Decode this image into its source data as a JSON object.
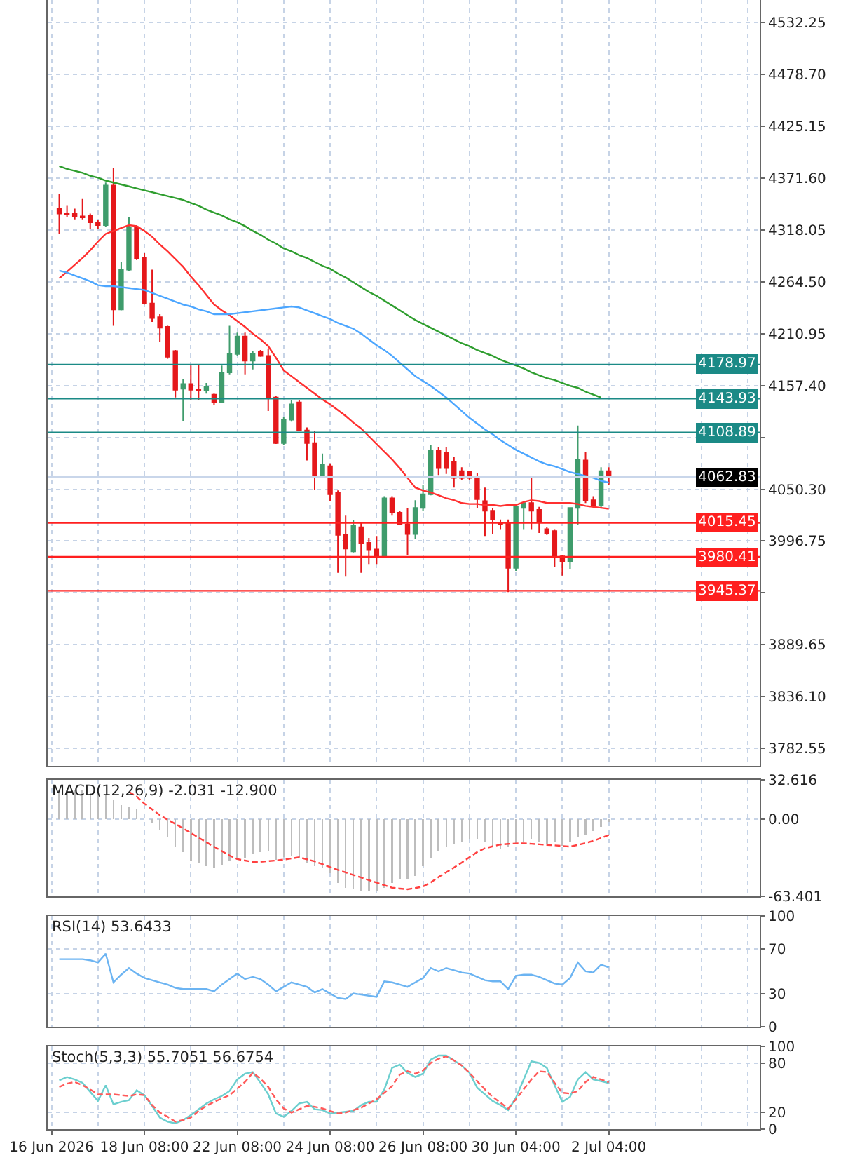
{
  "chart_data": [
    {
      "type": "candlestick",
      "categories": [
        null,
        null,
        null,
        null,
        null,
        null,
        null,
        null,
        null,
        null,
        null,
        null,
        null,
        null,
        null,
        null,
        null,
        null,
        null,
        null,
        null,
        null,
        null,
        null,
        null,
        null,
        null,
        null,
        null,
        null,
        null,
        null,
        null,
        null,
        null,
        null,
        null,
        null,
        null,
        null,
        null,
        null,
        null,
        null,
        null,
        null,
        null,
        null,
        null,
        null,
        null,
        null,
        null,
        null,
        null,
        null,
        null,
        null,
        null,
        null,
        null,
        null,
        null,
        null,
        null,
        null,
        null,
        null,
        null,
        null,
        null,
        null,
        null,
        null,
        null,
        null,
        null,
        null,
        null,
        null,
        null,
        null,
        null,
        null,
        null,
        null,
        null,
        null,
        null,
        null,
        null,
        null
      ],
      "ohlc": [
        null,
        [
          4340,
          4355,
          4314,
          4335
        ],
        [
          4335,
          4343,
          4331,
          4334
        ],
        [
          4335,
          4340,
          4329,
          4332
        ],
        [
          4332,
          4350,
          4329,
          4331
        ],
        [
          4333,
          4335,
          4319,
          4326
        ],
        [
          4326,
          4328,
          4319,
          4323
        ],
        [
          4323,
          4367,
          4321,
          4364
        ],
        [
          4364,
          4382,
          4219,
          4236
        ],
        [
          4236,
          4285,
          4235,
          4277
        ],
        [
          4277,
          4331,
          4276,
          4321
        ],
        [
          4321,
          4323,
          4287,
          4289
        ],
        [
          4289,
          4294,
          4241,
          4242
        ],
        [
          4242,
          4277,
          4223,
          4227
        ],
        [
          4228,
          4231,
          4202,
          4217
        ],
        [
          4218,
          4219,
          4185,
          4187
        ],
        [
          4193,
          4194,
          4145,
          4153
        ],
        [
          4154,
          4164,
          4121,
          4159
        ],
        [
          4159,
          4178,
          4142,
          4153
        ],
        [
          4153,
          4179,
          4142,
          4152
        ],
        [
          4152,
          4160,
          4149,
          4156
        ],
        [
          4148,
          4149,
          4137,
          4140
        ],
        [
          4140,
          4178,
          4139,
          4171
        ],
        [
          4171,
          4219,
          4169,
          4190
        ],
        [
          4190,
          4212,
          4188,
          4208
        ],
        [
          4208,
          4212,
          4169,
          4183
        ],
        [
          4183,
          4193,
          4174,
          4190
        ],
        [
          4192,
          4194,
          4187,
          4188
        ],
        [
          4188,
          4195,
          4131,
          4145
        ],
        [
          4145,
          4147,
          4097,
          4098
        ],
        [
          4098,
          4125,
          4096,
          4122
        ],
        [
          4122,
          4142,
          4120,
          4138
        ],
        [
          4140,
          4142,
          4110,
          4111
        ],
        [
          4111,
          4114,
          4080,
          4098
        ],
        [
          4098,
          4110,
          4050,
          4063
        ],
        [
          4063,
          4087,
          4062,
          4076
        ],
        [
          4074,
          4077,
          4038,
          4045
        ],
        [
          4047,
          4049,
          3964,
          4003
        ],
        [
          4003,
          4023,
          3960,
          3989
        ],
        [
          3986,
          4018,
          3985,
          4013
        ],
        [
          4011,
          4016,
          3964,
          3995
        ],
        [
          3995,
          4000,
          3973,
          3988
        ],
        [
          3988,
          4002,
          3973,
          3980
        ],
        [
          3980,
          4043,
          3980,
          4041
        ],
        [
          4041,
          4043,
          4023,
          4026
        ],
        [
          4026,
          4028,
          4013,
          4014
        ],
        [
          4014,
          4031,
          3982,
          4004
        ],
        [
          4004,
          4039,
          3999,
          4031
        ],
        [
          4031,
          4055,
          4028,
          4045
        ],
        [
          4045,
          4096,
          4044,
          4090
        ],
        [
          4090,
          4094,
          4065,
          4072
        ],
        [
          4088,
          4094,
          4066,
          4072
        ],
        [
          4079,
          4084,
          4052,
          4062
        ],
        [
          4069,
          4073,
          4060,
          4062
        ],
        [
          4068,
          4069,
          4060,
          4062
        ],
        [
          4062,
          4067,
          4031,
          4040
        ],
        [
          4038,
          4052,
          4002,
          4028
        ],
        [
          4028,
          4031,
          4004,
          4019
        ],
        [
          4016,
          4019,
          4009,
          4014
        ],
        [
          4016,
          4019,
          3944,
          3969
        ],
        [
          3969,
          4034,
          3966,
          4032
        ],
        [
          4031,
          4038,
          4009,
          4036
        ],
        [
          4036,
          4063,
          4009,
          4028
        ],
        [
          4029,
          4032,
          4005,
          4016
        ],
        [
          4009,
          4011,
          4003,
          4005
        ],
        [
          4007,
          4009,
          3970,
          3981
        ],
        [
          3981,
          3982,
          3961,
          3976
        ],
        [
          3976,
          4031,
          3968,
          4031
        ],
        [
          4031,
          4116,
          4013,
          4081
        ],
        [
          4080,
          4089,
          4036,
          4039
        ],
        [
          4039,
          4043,
          4032,
          4034
        ],
        [
          4034,
          4073,
          4031,
          4069
        ],
        [
          4069,
          4073,
          4055,
          4062.83
        ],
        null,
        null,
        null,
        null,
        null,
        null,
        null,
        null,
        null,
        null,
        null,
        null,
        null,
        null,
        null,
        null,
        null,
        null,
        null
      ],
      "colors": [
        null,
        "#e5181b",
        "#e5181b",
        "#e5181b",
        "#e5181b",
        "#e5181b",
        "#e5181b",
        "#3f9c6c",
        "#e5181b",
        "#3f9c6c",
        "#3f9c6c",
        "#e5181b",
        "#e5181b",
        "#e5181b",
        "#e5181b",
        "#e5181b",
        "#e5181b",
        "#3f9c6c",
        "#e5181b",
        "#e5181b",
        "#3f9c6c",
        "#e5181b",
        "#3f9c6c",
        "#3f9c6c",
        "#3f9c6c",
        "#e5181b",
        "#3f9c6c",
        "#e5181b",
        "#e5181b",
        "#e5181b",
        "#3f9c6c",
        "#3f9c6c",
        "#e5181b",
        "#e5181b",
        "#e5181b",
        "#3f9c6c",
        "#e5181b",
        "#e5181b",
        "#e5181b",
        "#3f9c6c",
        "#e5181b",
        "#e5181b",
        "#e5181b",
        "#3f9c6c",
        "#e5181b",
        "#e5181b",
        "#e5181b",
        "#3f9c6c",
        "#3f9c6c",
        "#3f9c6c",
        "#e5181b",
        "#e5181b",
        "#e5181b",
        "#e5181b",
        "#e5181b",
        "#e5181b",
        "#e5181b",
        "#e5181b",
        "#e5181b",
        "#e5181b",
        "#3f9c6c",
        "#3f9c6c",
        "#e5181b",
        "#e5181b",
        "#e5181b",
        "#e5181b",
        "#e5181b",
        "#3f9c6c",
        "#3f9c6c",
        "#e5181b",
        "#e5181b",
        "#3f9c6c",
        "#e5181b",
        null,
        null,
        null,
        null,
        null,
        null,
        null,
        null,
        null,
        null,
        null,
        null,
        null,
        null,
        null,
        null,
        null,
        null,
        null
      ],
      "series": [
        {
          "type": "line",
          "color": "#ff3030",
          "values": [
            null,
            4268,
            4275,
            4282,
            4289,
            4297,
            4306,
            4314,
            4317,
            4320,
            4323,
            4322,
            4317,
            4311,
            4303,
            4296,
            4288,
            4280,
            4270,
            4261,
            4251,
            4241,
            4235,
            4230,
            4224,
            4218,
            4211,
            4205,
            4198,
            4186,
            4173,
            4167,
            4161,
            4155,
            4149,
            4143,
            4138,
            4132,
            4126,
            4119,
            4113,
            4105,
            4097,
            4089,
            4081,
            4072,
            4062,
            4052,
            4049,
            4047,
            4044,
            4041,
            4039,
            4036,
            4035,
            4035,
            4034,
            4034,
            4033,
            4034,
            4034,
            4037,
            4039,
            4038,
            4036,
            4036,
            4036,
            4036,
            4035,
            4033,
            4032,
            4031,
            4030,
            null,
            null,
            null,
            null,
            null,
            null,
            null,
            null,
            null,
            null,
            null,
            null,
            null,
            null,
            null,
            null,
            null,
            null,
            null
          ]
        },
        {
          "type": "line",
          "color": "#4ca6ff",
          "values": [
            null,
            4276,
            4274,
            4271,
            4268,
            4265,
            4261,
            4260,
            4260,
            4259,
            4258,
            4257,
            4256,
            4253,
            4250,
            4247,
            4244,
            4241,
            4239,
            4236,
            4234,
            4231,
            4231,
            4231,
            4232,
            4233,
            4234,
            4235,
            4236,
            4237,
            4238,
            4239,
            4238,
            4235,
            4232,
            4229,
            4226,
            4222,
            4219,
            4216,
            4211,
            4205,
            4199,
            4194,
            4188,
            4181,
            4174,
            4167,
            4162,
            4157,
            4151,
            4145,
            4138,
            4131,
            4124,
            4118,
            4112,
            4107,
            4101,
            4096,
            4091,
            4087,
            4083,
            4079,
            4076,
            4074,
            4071,
            4068,
            4066,
            4064,
            4062,
            4059,
            4057,
            null,
            null,
            null,
            null,
            null,
            null,
            null,
            null,
            null,
            null,
            null,
            null,
            null,
            null,
            null,
            null,
            null,
            null,
            null
          ]
        },
        {
          "type": "line",
          "color": "#2f9e2f",
          "values": [
            null,
            4384,
            4381,
            4379,
            4377,
            4374,
            4372,
            4369,
            4367,
            4365,
            4363,
            4361,
            4359,
            4357,
            4355,
            4353,
            4351,
            4349,
            4346,
            4343,
            4339,
            4336,
            4333,
            4329,
            4326,
            4322,
            4317,
            4313,
            4308,
            4304,
            4299,
            4296,
            4292,
            4289,
            4285,
            4281,
            4278,
            4273,
            4269,
            4264,
            4259,
            4254,
            4250,
            4245,
            4240,
            4235,
            4230,
            4225,
            4221,
            4217,
            4213,
            4209,
            4205,
            4201,
            4198,
            4194,
            4191,
            4188,
            4184,
            4181,
            4178,
            4175,
            4171,
            4168,
            4165,
            4163,
            4160,
            4157,
            4155,
            4151,
            4148,
            4145,
            null,
            null,
            null,
            null,
            null,
            null,
            null,
            null,
            null,
            null,
            null,
            null,
            null,
            null,
            null,
            null,
            null,
            null,
            null,
            null
          ]
        }
      ],
      "ylim": [
        3764.6,
        4555.5
      ],
      "yticks": [
        4532.25,
        {
          "value": 4478.7,
          "label": "4478.70"
        },
        4425.15,
        {
          "value": 4371.6,
          "label": "4371.60"
        },
        4318.05,
        {
          "value": 4264.5,
          "label": "4264.50"
        },
        4210.95,
        {
          "value": 4157.4,
          "label": "4157.40"
        },
        {
          "value": 4103.85,
          "label": null
        },
        {
          "value": 4050.3,
          "label": "4050.30"
        },
        3996.75,
        {
          "value": 3943.2,
          "label": null
        },
        3889.65,
        {
          "value": 3836.1,
          "label": "3836.10"
        },
        3782.55
      ],
      "ref_lines": [
        {
          "axis": "y",
          "value": 4178.97,
          "label": "4178.97",
          "color": "#1b8a86"
        },
        {
          "axis": "y",
          "value": 4143.93,
          "label": "4143.93",
          "color": "#1b8a86"
        },
        {
          "axis": "y",
          "value": 4108.89,
          "label": "4108.89",
          "color": "#1b8a86"
        },
        {
          "axis": "y",
          "value": 4062.83,
          "label": "4062.83",
          "color": "#c9d6ea"
        },
        {
          "axis": "y",
          "value": 4015.45,
          "label": "4015.45",
          "color": "#ff1f1f"
        },
        {
          "axis": "y",
          "value": 3980.41,
          "label": "3980.41",
          "color": "#ff1f1f"
        },
        {
          "axis": "y",
          "value": 3945.37,
          "label": "3945.37",
          "color": "#ff1f1f"
        }
      ],
      "grid": true,
      "tick_labels": "y"
    },
    {
      "type": "bar",
      "title": "MACD(12,26,9) -2.031 -12.900",
      "categories": [
        null,
        null,
        null,
        null,
        null,
        null,
        null,
        null,
        null,
        null,
        null,
        null,
        null,
        null,
        null,
        null,
        null,
        null,
        null,
        null,
        null,
        null,
        null,
        null,
        null,
        null,
        null,
        null,
        null,
        null,
        null,
        null,
        null,
        null,
        null,
        null,
        null,
        null,
        null,
        null,
        null,
        null,
        null,
        null,
        null,
        null,
        null,
        null,
        null,
        null,
        null,
        null,
        null,
        null,
        null,
        null,
        null,
        null,
        null,
        null,
        null,
        null,
        null,
        null,
        null,
        null,
        null,
        null,
        null,
        null,
        null,
        null,
        null,
        null,
        null,
        null,
        null,
        null,
        null,
        null,
        null,
        null,
        null,
        null,
        null,
        null,
        null,
        null,
        null,
        null,
        null,
        null
      ],
      "series": [
        {
          "color": "#bdbdbd",
          "values": [
            null,
            23.8,
            23.8,
            23.8,
            23.8,
            21.8,
            21.8,
            19.8,
            15.7,
            11.7,
            10.5,
            8.9,
            null,
            -3.5,
            -8.3,
            -14.4,
            -22.4,
            -27.2,
            -34.4,
            -36.4,
            -38.4,
            -40.5,
            -37.6,
            -34.4,
            -33.6,
            -32.4,
            -28.4,
            -27.2,
            -26.4,
            -33.6,
            -31.2,
            -30.4,
            -32.4,
            -36.4,
            -38.4,
            -40.5,
            -44.5,
            -52.5,
            -56.5,
            -57.7,
            -58.5,
            -59.3,
            -58.5,
            -56.5,
            -52.5,
            -49.7,
            -49.7,
            -46.5,
            -38.4,
            -32.4,
            -26.4,
            -22.4,
            -20.4,
            -18.4,
            -16.4,
            -16.4,
            -18.4,
            -22.4,
            -24.4,
            -22.4,
            -20.4,
            -18.4,
            -16.4,
            -18.4,
            -20.4,
            -18.4,
            -21.6,
            -18.4,
            -14.4,
            -12.4,
            -9.5,
            -6.3,
            -2.031,
            null,
            null,
            null,
            null,
            null,
            null,
            null,
            null,
            null,
            null,
            null,
            null,
            null,
            null,
            null,
            null,
            null,
            null,
            null
          ]
        },
        {
          "type": "line",
          "color": "#ff4040",
          "line_style": "dashed",
          "values": [
            null,
            null,
            null,
            null,
            null,
            null,
            null,
            null,
            null,
            null,
            22.7,
            18.9,
            13,
            8.3,
            3.5,
            -0.2,
            -3.7,
            -7.4,
            -11.2,
            -15,
            -18.8,
            -22.5,
            -26.1,
            -29.8,
            -32.7,
            -33.9,
            -35,
            -34.9,
            -34.4,
            -33.9,
            -33.1,
            -32.2,
            -31.2,
            -32.9,
            -34.6,
            -36.9,
            -39.3,
            -41.6,
            -43.7,
            -45.8,
            -47.9,
            -50,
            -52.1,
            -54.2,
            -56.3,
            -57,
            -57.6,
            -56.6,
            -55.3,
            -52,
            -47.5,
            -43.6,
            -39.7,
            -35.6,
            -31.2,
            -26.9,
            -23.8,
            -22.2,
            -20.7,
            -20.2,
            -19.8,
            -19.7,
            -20.1,
            -20.5,
            -21,
            -21.4,
            -21.9,
            -22.4,
            -21,
            -19.5,
            -17.7,
            -15.3,
            -12.9,
            null,
            null,
            null,
            null,
            null,
            null,
            null,
            null,
            null,
            null,
            null,
            null,
            null,
            null,
            null,
            null,
            null,
            null,
            null
          ]
        }
      ],
      "ylim": [
        -63.401,
        32.616
      ],
      "yticks": [
        32.616,
        {
          "value": 0,
          "label": "0.00"
        },
        -63.401
      ],
      "grid": true,
      "tick_labels": "y"
    },
    {
      "type": "line",
      "title": "RSI(14) 53.6433",
      "categories": [
        null,
        null,
        null,
        null,
        null,
        null,
        null,
        null,
        null,
        null,
        null,
        null,
        null,
        null,
        null,
        null,
        null,
        null,
        null,
        null,
        null,
        null,
        null,
        null,
        null,
        null,
        null,
        null,
        null,
        null,
        null,
        null,
        null,
        null,
        null,
        null,
        null,
        null,
        null,
        null,
        null,
        null,
        null,
        null,
        null,
        null,
        null,
        null,
        null,
        null,
        null,
        null,
        null,
        null,
        null,
        null,
        null,
        null,
        null,
        null,
        null,
        null,
        null,
        null,
        null,
        null,
        null,
        null,
        null,
        null,
        null,
        null,
        null,
        null,
        null,
        null,
        null,
        null,
        null,
        null,
        null,
        null,
        null,
        null,
        null,
        null,
        null,
        null,
        null,
        null,
        null,
        null
      ],
      "series": [
        {
          "color": "#6cb4f2",
          "values": [
            null,
            61,
            61,
            61,
            61,
            60,
            58,
            66,
            40,
            47,
            53,
            48,
            44,
            42,
            40,
            38,
            35,
            34,
            34,
            34,
            34,
            32,
            38,
            43,
            48,
            43,
            45,
            43,
            38,
            32,
            36,
            40,
            38,
            36,
            31,
            34,
            30,
            26,
            25,
            30,
            29,
            28,
            27,
            41,
            40,
            38,
            36,
            40,
            44,
            53,
            50,
            53,
            51,
            49,
            48,
            45,
            42,
            41,
            41,
            34,
            46,
            47,
            47,
            45,
            42,
            39,
            38,
            44,
            58,
            50,
            49,
            56,
            53.6433,
            null,
            null,
            null,
            null,
            null,
            null,
            null,
            null,
            null,
            null,
            null,
            null,
            null,
            null,
            null,
            null,
            null,
            null,
            null
          ]
        }
      ],
      "ylim": [
        0,
        100
      ],
      "yticks": [
        100,
        70,
        30,
        0
      ],
      "grid": true,
      "tick_labels": "y"
    },
    {
      "type": "line",
      "title": "Stoch(5,3,3) 55.7051 56.6754",
      "categories": [
        "16 Jun 2026",
        null,
        null,
        null,
        null,
        null,
        null,
        null,
        null,
        null,
        null,
        null,
        "18 Jun 08:00",
        null,
        null,
        null,
        null,
        null,
        null,
        null,
        null,
        null,
        null,
        null,
        "22 Jun 08:00",
        null,
        null,
        null,
        null,
        null,
        null,
        null,
        null,
        null,
        null,
        null,
        "24 Jun 08:00",
        null,
        null,
        null,
        null,
        null,
        null,
        null,
        null,
        null,
        null,
        null,
        "26 Jun 08:00",
        null,
        null,
        null,
        null,
        null,
        null,
        null,
        null,
        null,
        null,
        null,
        "30 Jun 04:00",
        null,
        null,
        null,
        null,
        null,
        null,
        null,
        null,
        null,
        null,
        null,
        "2 Jul 04:00",
        null,
        null,
        null,
        null,
        null,
        null,
        null,
        null,
        null,
        null,
        null,
        null,
        null,
        null,
        null,
        null,
        null,
        null,
        null
      ],
      "series": [
        {
          "color": "#6ccfcf",
          "values": [
            null,
            59,
            63,
            60,
            56,
            45,
            34,
            53,
            30,
            33,
            35,
            47,
            41,
            28,
            14,
            9,
            7,
            11,
            17,
            24,
            31,
            36,
            40,
            46,
            60,
            67,
            69,
            56,
            42,
            19,
            15,
            22,
            31,
            33,
            24,
            23,
            19,
            20,
            21,
            22,
            29,
            33,
            33,
            48,
            74,
            78,
            68,
            63,
            67,
            84,
            89,
            89,
            83,
            77,
            68,
            50,
            42,
            34,
            29,
            23,
            38,
            60,
            82,
            80,
            74,
            53,
            33,
            39,
            60,
            69,
            60,
            58,
            55.7051,
            null,
            null,
            null,
            null,
            null,
            null,
            null,
            null,
            null,
            null,
            null,
            null,
            null,
            null,
            null,
            null,
            null,
            null,
            null
          ]
        },
        {
          "color": "#ff5a5a",
          "line_style": "dashed",
          "values": [
            null,
            51,
            55,
            57,
            53,
            48,
            42,
            42,
            42,
            41,
            40,
            42,
            41,
            29,
            20,
            15,
            9,
            11,
            14,
            22,
            28,
            33,
            37,
            41,
            49,
            57,
            68,
            61,
            51,
            36,
            25,
            20,
            24,
            28,
            27,
            25,
            22,
            19,
            20,
            23,
            26,
            31,
            36,
            44,
            52,
            66,
            70,
            67,
            71,
            80,
            85,
            88,
            83,
            77,
            68,
            58,
            48,
            39,
            32,
            25,
            36,
            48,
            60,
            70,
            69,
            56,
            44,
            43,
            46,
            57,
            63,
            60,
            56.6754,
            null,
            null,
            null,
            null,
            null,
            null,
            null,
            null,
            null,
            null,
            null,
            null,
            null,
            null,
            null,
            null,
            null,
            null,
            null
          ]
        }
      ],
      "ylim": [
        0,
        100
      ],
      "yticks": [
        100,
        80,
        20,
        0
      ],
      "grid": true
    }
  ]
}
